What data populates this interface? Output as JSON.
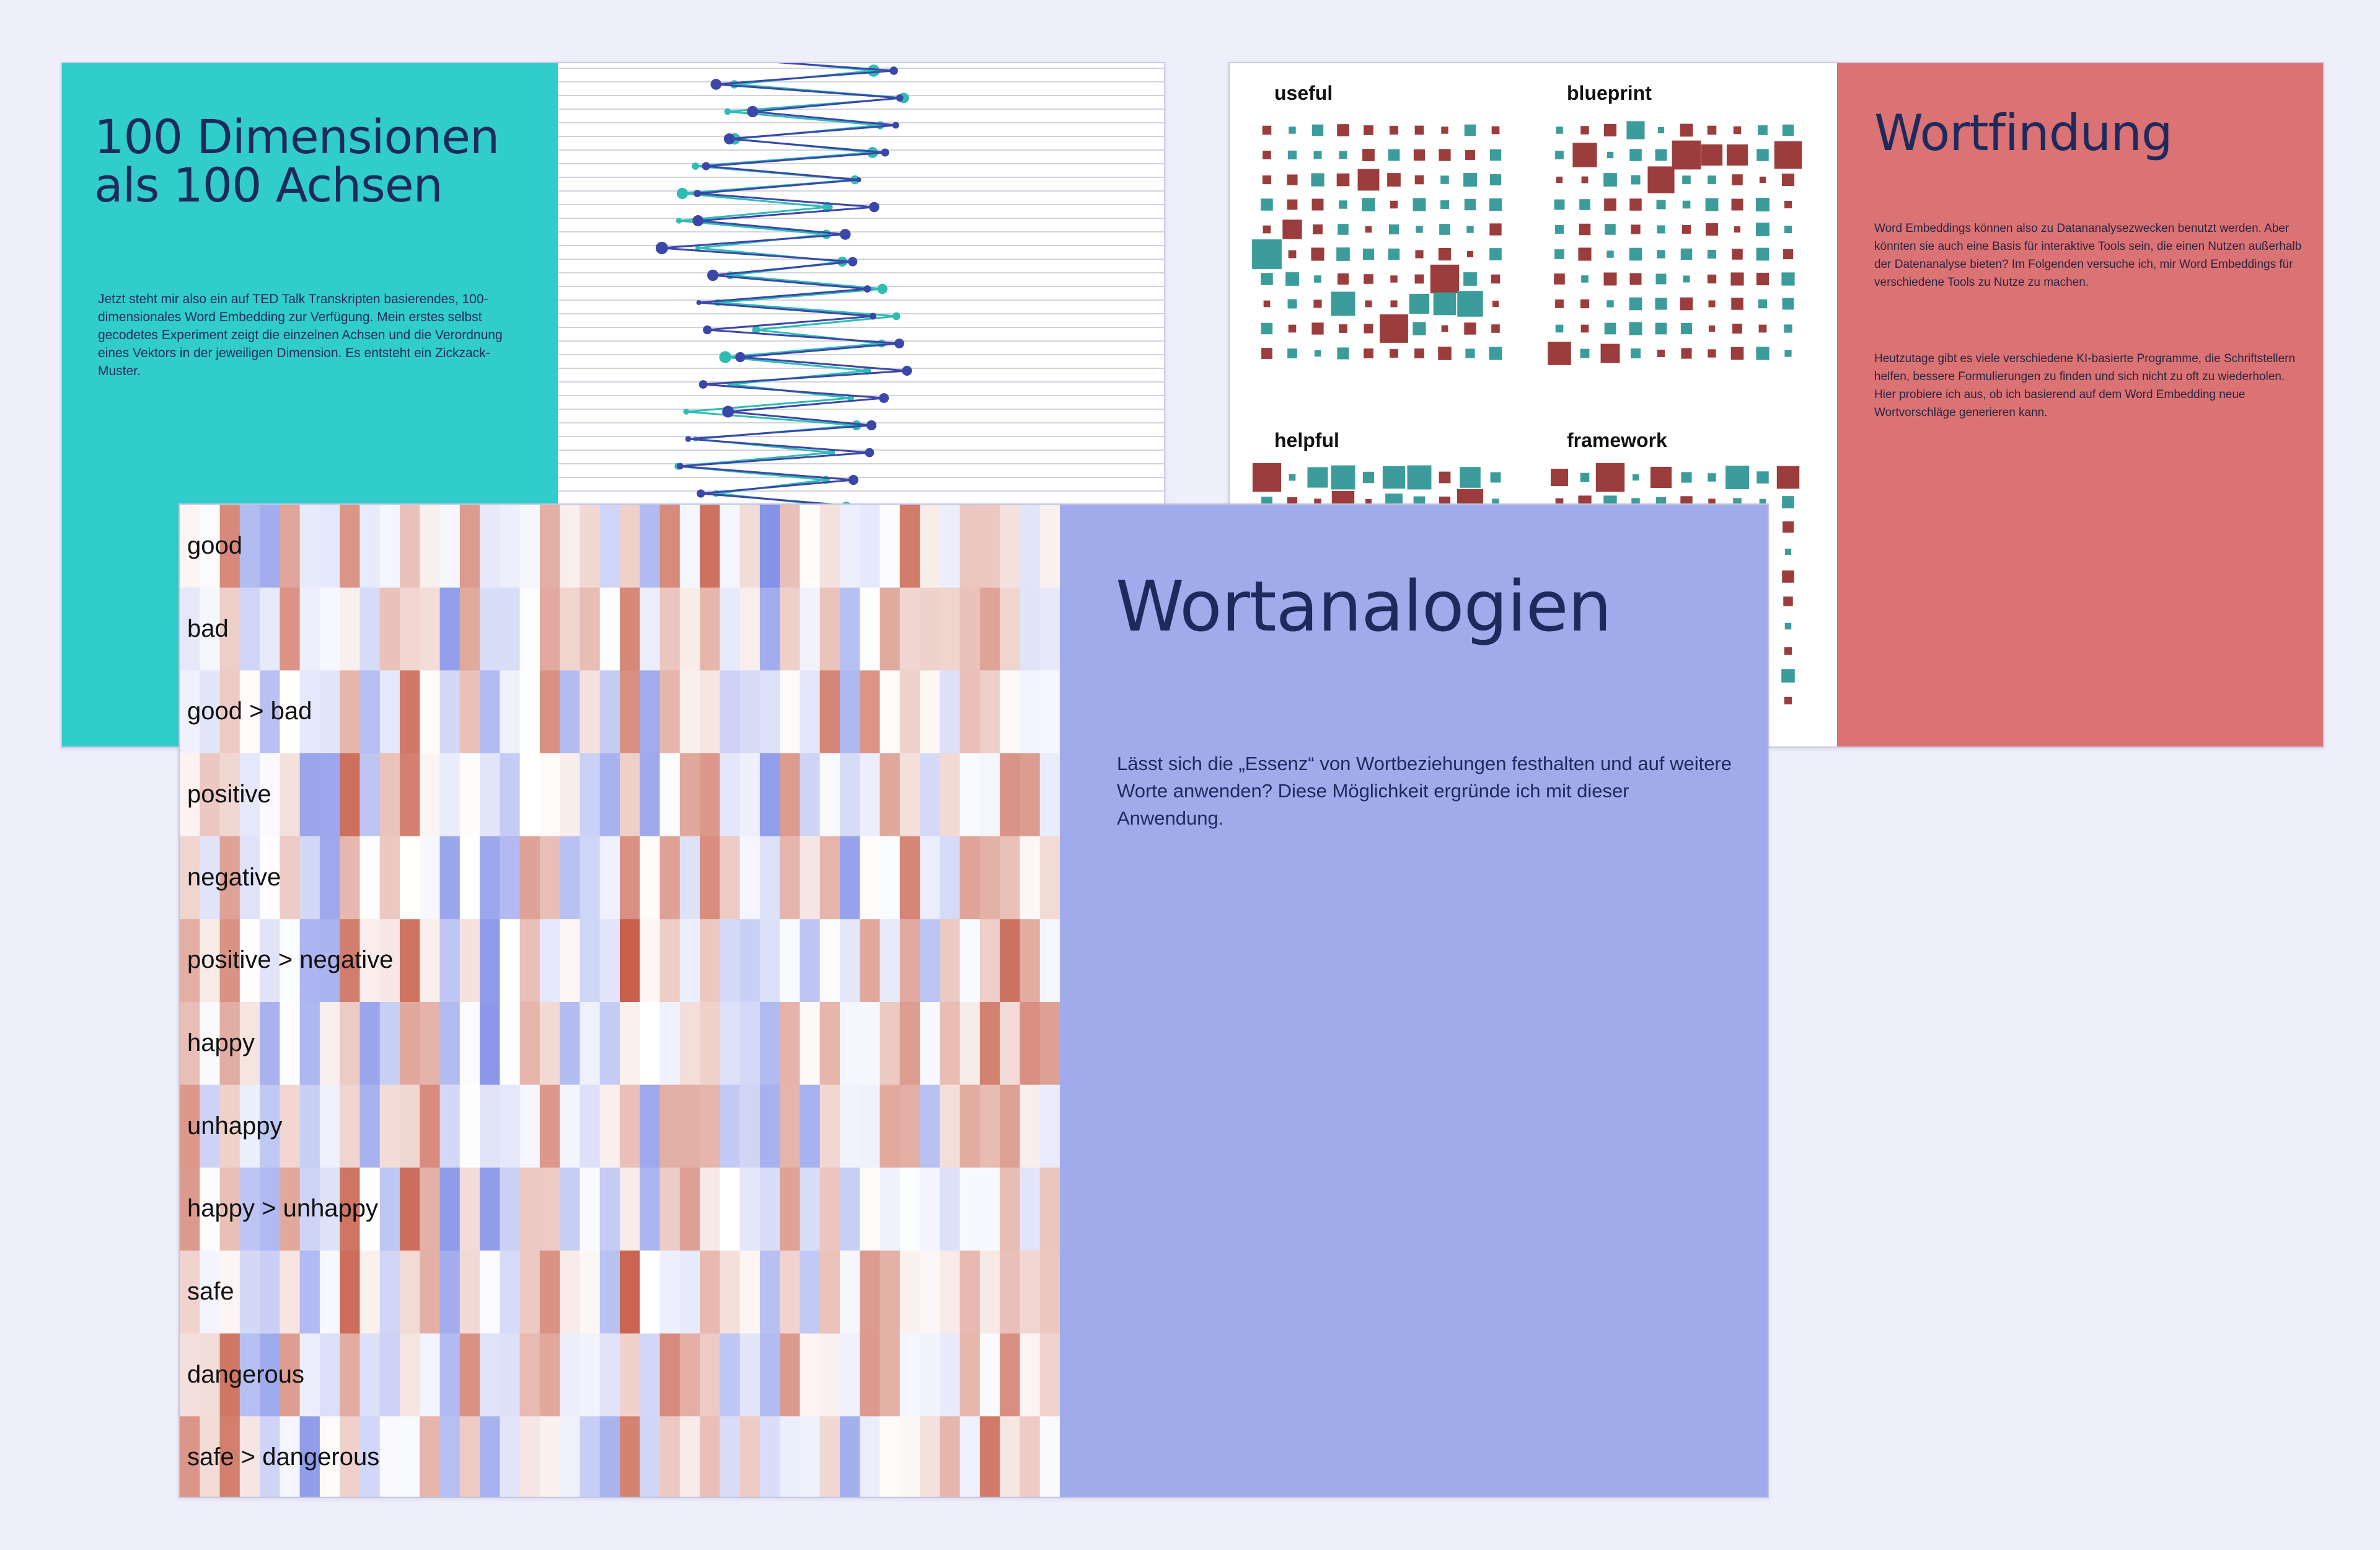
{
  "slide_dimensions": {
    "title": "100 Dimensionen\nals 100 Achsen",
    "body": "Jetzt steht mir also ein auf TED Talk Transkripten basierendes, 100-dimensionales Word Embedding zur Verfügung. Mein erstes selbst gecodetes Experiment zeigt die einzelnen Achsen und die Verordnung eines Vektors in der jeweiligen Dimension. Es entsteht ein Zickzack-Muster.",
    "colors": {
      "panel": "#31cdca",
      "series_a": "#3a47a8",
      "series_b": "#2fbcb4"
    }
  },
  "slide_wortfindung": {
    "title": "Wortfindung",
    "paragraphs": [
      "Word Embeddings können also zu Datananalysezwecken benutzt werden. Aber könnten sie auch eine Basis für interaktive Tools sein, die einen Nutzen außerhalb der Datenanalyse bieten? Im Folgenden versuche ich, mir Word Embeddings für verschiedene Tools zu Nutze zu machen.",
      "Heutzutage gibt es viele verschiedene KI-basierte Programme, die Schriftstellern helfen, bessere Formulierungen zu finden und sich nicht zu oft zu wiederholen. Hier probiere ich aus, ob ich basierend auf dem Word Embedding neue Wortvorschläge generieren kann."
    ],
    "grid_labels": [
      "useful",
      "blueprint",
      "helpful",
      "framework"
    ],
    "colors": {
      "panel": "#db7374",
      "positive": "#9b3d3c",
      "negative": "#3c9c9c"
    }
  },
  "slide_wortanalogien": {
    "title": "Wortanalogien",
    "body": "Lässt sich die „Essenz“ von Wortbeziehungen festhalten und auf weitere Worte anwenden? Diese Möglichkeit ergründe ich mit dieser Anwendung.",
    "row_labels": [
      "good",
      "bad",
      "good > bad",
      "positive",
      "negative",
      "positive > negative",
      "happy",
      "unhappy",
      "happy > unhappy",
      "safe",
      "dangerous",
      "safe > dangerous"
    ],
    "colors": {
      "panel": "#a0abeb",
      "warm": "#c8604c",
      "cool": "#5b6ee1"
    }
  }
}
